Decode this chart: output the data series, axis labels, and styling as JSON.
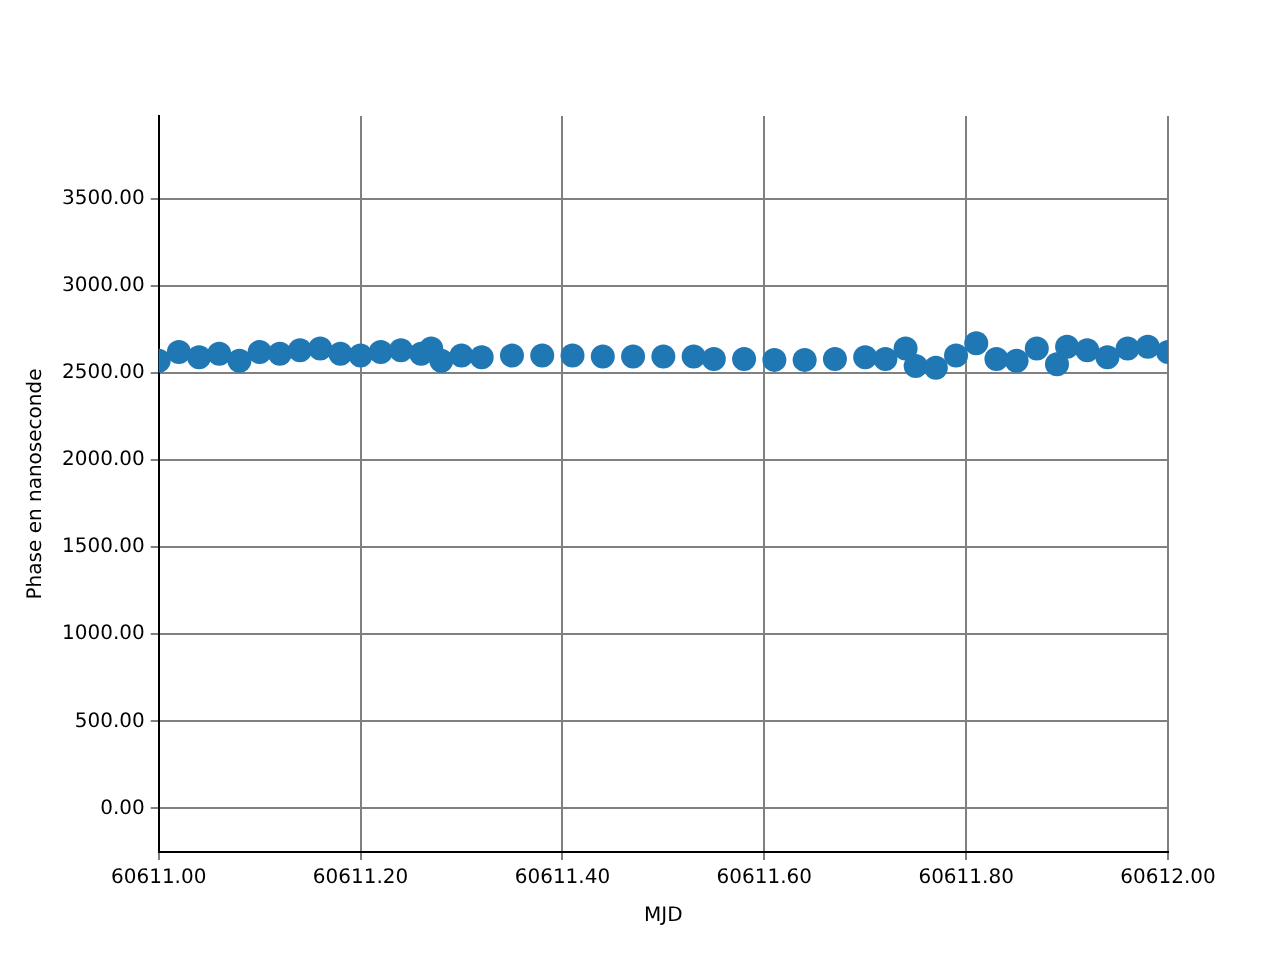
{
  "chart_data": {
    "type": "scatter",
    "xlabel": "MJD",
    "ylabel": "Phase en nanoseconde",
    "x": [
      60611.0,
      60611.02,
      60611.04,
      60611.06,
      60611.08,
      60611.1,
      60611.12,
      60611.14,
      60611.16,
      60611.18,
      60611.2,
      60611.22,
      60611.24,
      60611.26,
      60611.27,
      60611.28,
      60611.3,
      60611.32,
      60611.35,
      60611.38,
      60611.41,
      60611.44,
      60611.47,
      60611.5,
      60611.53,
      60611.55,
      60611.58,
      60611.61,
      60611.64,
      60611.67,
      60611.7,
      60611.72,
      60611.74,
      60611.75,
      60611.77,
      60611.79,
      60611.81,
      60611.83,
      60611.85,
      60611.87,
      60611.89,
      60611.9,
      60611.92,
      60611.94,
      60611.96,
      60611.98,
      60612.0
    ],
    "series": [
      {
        "color": "#1f77b4",
        "values": [
          2570,
          2620,
          2590,
          2610,
          2570,
          2620,
          2610,
          2630,
          2640,
          2610,
          2600,
          2620,
          2630,
          2610,
          2640,
          2570,
          2600,
          2590,
          2600,
          2600,
          2600,
          2595,
          2595,
          2595,
          2595,
          2580,
          2580,
          2575,
          2575,
          2580,
          2590,
          2580,
          2640,
          2540,
          2530,
          2600,
          2670,
          2580,
          2570,
          2640,
          2550,
          2650,
          2630,
          2590,
          2640,
          2650,
          2620
        ]
      }
    ],
    "xlim": [
      60611.0,
      60612.0
    ],
    "xticks": [
      {
        "value": 60611.0,
        "label": "60611.00"
      },
      {
        "value": 60611.2,
        "label": "60611.20"
      },
      {
        "value": 60611.4,
        "label": "60611.40"
      },
      {
        "value": 60611.6,
        "label": "60611.60"
      },
      {
        "value": 60611.8,
        "label": "60611.80"
      },
      {
        "value": 60612.0,
        "label": "60612.00"
      }
    ],
    "ylim": [
      -250,
      3975
    ],
    "yticks": [
      {
        "value": 0,
        "label": "0.00"
      },
      {
        "value": 500,
        "label": "500.00"
      },
      {
        "value": 1000,
        "label": "1000.00"
      },
      {
        "value": 1500,
        "label": "1500.00"
      },
      {
        "value": 2000,
        "label": "2000.00"
      },
      {
        "value": 2500,
        "label": "2500.00"
      },
      {
        "value": 3000,
        "label": "3000.00"
      },
      {
        "value": 3500,
        "label": "3500.00"
      }
    ],
    "grid": true,
    "marker": "circle"
  }
}
